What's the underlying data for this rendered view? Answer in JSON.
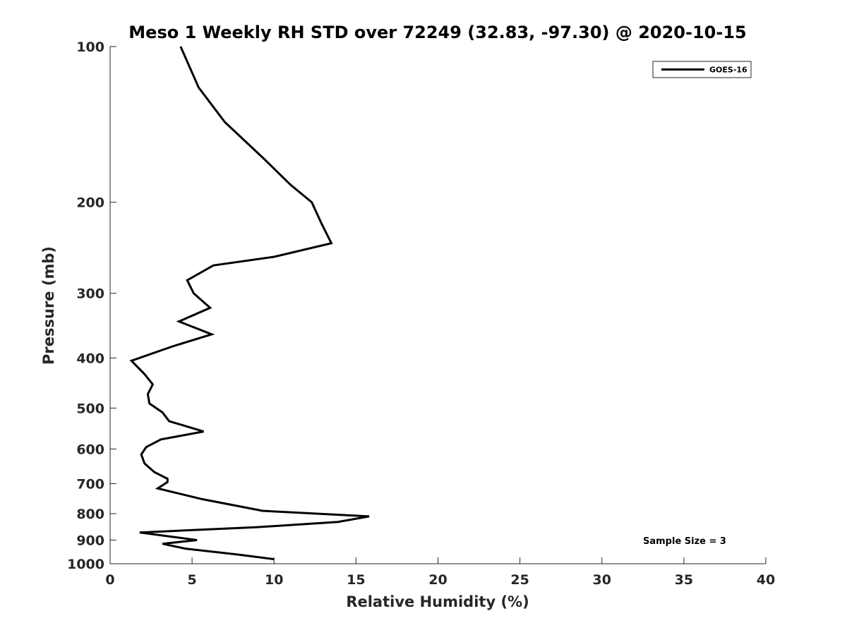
{
  "chart_data": {
    "type": "line",
    "title": "Meso 1 Weekly RH STD over 72249 (32.83, -97.30) @ 2020-10-15",
    "xlabel": "Relative Humidity (%)",
    "ylabel": "Pressure (mb)",
    "xlim": [
      0,
      40
    ],
    "ylim": [
      100,
      1000
    ],
    "y_scale": "log",
    "y_reversed": true,
    "grid": false,
    "legend_position": "top-right",
    "x_ticks": [
      "0",
      "5",
      "10",
      "15",
      "20",
      "25",
      "30",
      "35",
      "40"
    ],
    "y_ticks": [
      "100",
      "200",
      "300",
      "400",
      "500",
      "600",
      "700",
      "800",
      "900",
      "1000"
    ],
    "series": [
      {
        "name": "GOES-16",
        "color": "#000000",
        "points": [
          [
            4.3,
            100
          ],
          [
            5.4,
            120
          ],
          [
            7.0,
            140
          ],
          [
            9.4,
            165
          ],
          [
            11.0,
            185
          ],
          [
            12.3,
            200
          ],
          [
            12.9,
            220
          ],
          [
            13.5,
            240
          ],
          [
            10.0,
            255
          ],
          [
            6.3,
            265
          ],
          [
            4.7,
            283
          ],
          [
            5.1,
            300
          ],
          [
            6.1,
            320
          ],
          [
            4.2,
            340
          ],
          [
            6.2,
            360
          ],
          [
            3.8,
            380
          ],
          [
            1.3,
            405
          ],
          [
            2.1,
            430
          ],
          [
            2.6,
            450
          ],
          [
            2.3,
            470
          ],
          [
            2.4,
            490
          ],
          [
            3.2,
            510
          ],
          [
            3.6,
            530
          ],
          [
            5.7,
            555
          ],
          [
            3.1,
            575
          ],
          [
            2.2,
            595
          ],
          [
            1.9,
            615
          ],
          [
            2.1,
            640
          ],
          [
            2.7,
            665
          ],
          [
            3.5,
            685
          ],
          [
            3.5,
            695
          ],
          [
            2.9,
            715
          ],
          [
            5.6,
            750
          ],
          [
            9.3,
            790
          ],
          [
            15.8,
            810
          ],
          [
            13.9,
            830
          ],
          [
            8.9,
            850
          ],
          [
            1.8,
            870
          ],
          [
            5.3,
            900
          ],
          [
            3.2,
            915
          ],
          [
            4.6,
            935
          ],
          [
            7.8,
            960
          ],
          [
            10.0,
            980
          ]
        ]
      }
    ],
    "annotation": "Sample Size = 3"
  }
}
